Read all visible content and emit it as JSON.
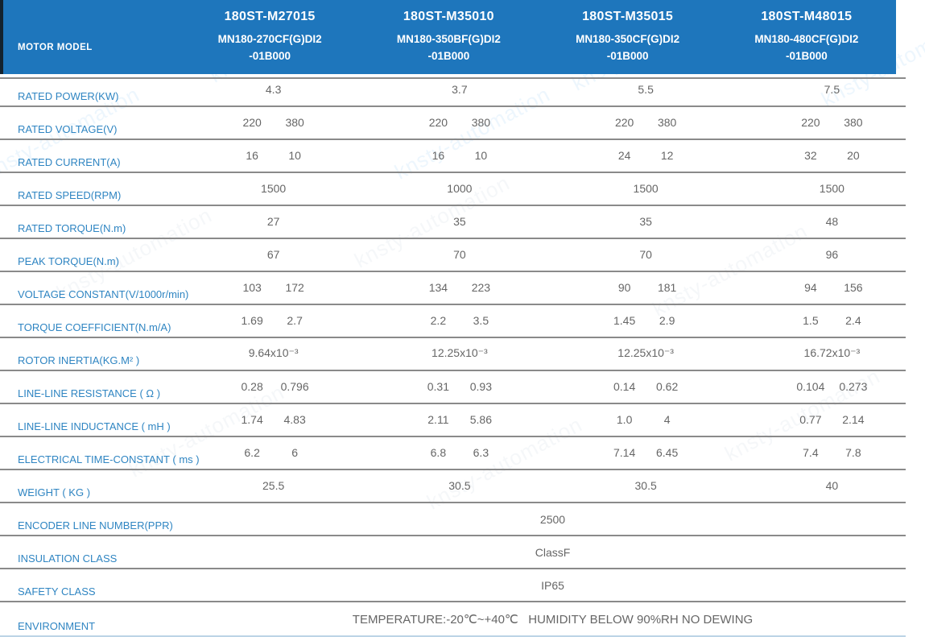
{
  "watermark": {
    "text": "knsty-automation"
  },
  "header": {
    "row_label": "MOTOR MODEL",
    "columns": [
      {
        "model": "180ST-M27015",
        "part": "MN180-270CF(G)DI2\n-01B000"
      },
      {
        "model": "180ST-M35010",
        "part": "MN180-350BF(G)DI2\n-01B000"
      },
      {
        "model": "180ST-M35015",
        "part": "MN180-350CF(G)DI2\n-01B000"
      },
      {
        "model": "180ST-M48015",
        "part": "MN180-480CF(G)DI2\n-01B000"
      }
    ]
  },
  "specs": [
    {
      "label": "RATED POWER(KW)",
      "values": [
        "4.3",
        "3.7",
        "5.5",
        "7.5"
      ]
    },
    {
      "label": "RATED VOLTAGE(V)",
      "values": [
        [
          "220",
          "380"
        ],
        [
          "220",
          "380"
        ],
        [
          "220",
          "380"
        ],
        [
          "220",
          "380"
        ]
      ]
    },
    {
      "label": "RATED CURRENT(A)",
      "values": [
        [
          "16",
          "10"
        ],
        [
          "16",
          "10"
        ],
        [
          "24",
          "12"
        ],
        [
          "32",
          "20"
        ]
      ]
    },
    {
      "label": "RATED SPEED(RPM)",
      "values": [
        "1500",
        "1000",
        "1500",
        "1500"
      ]
    },
    {
      "label": "RATED TORQUE(N.m)",
      "values": [
        "27",
        "35",
        "35",
        "48"
      ]
    },
    {
      "label": "PEAK TORQUE(N.m)",
      "values": [
        "67",
        "70",
        "70",
        "96"
      ]
    },
    {
      "label": "VOLTAGE CONSTANT(V/1000r/min)",
      "values": [
        [
          "103",
          "172"
        ],
        [
          "134",
          "223"
        ],
        [
          "90",
          "181"
        ],
        [
          "94",
          "156"
        ]
      ]
    },
    {
      "label": "TORQUE COEFFICIENT(N.m/A)",
      "values": [
        [
          "1.69",
          "2.7"
        ],
        [
          "2.2",
          "3.5"
        ],
        [
          "1.45",
          "2.9"
        ],
        [
          "1.5",
          "2.4"
        ]
      ]
    },
    {
      "label": "ROTOR INERTIA(KG.M² )",
      "values": [
        "9.64x10⁻³",
        "12.25x10⁻³",
        "12.25x10⁻³",
        "16.72x10⁻³"
      ]
    },
    {
      "label": "LINE-LINE RESISTANCE ( Ω )",
      "values": [
        [
          "0.28",
          "0.796"
        ],
        [
          "0.31",
          "0.93"
        ],
        [
          "0.14",
          "0.62"
        ],
        [
          "0.104",
          "0.273"
        ]
      ]
    },
    {
      "label": "LINE-LINE INDUCTANCE ( mH )",
      "values": [
        [
          "1.74",
          "4.83"
        ],
        [
          "2.11",
          "5.86"
        ],
        [
          "1.0",
          "4"
        ],
        [
          "0.77",
          "2.14"
        ]
      ]
    },
    {
      "label": "ELECTRICAL TIME-CONSTANT ( ms )",
      "values": [
        [
          "6.2",
          "6"
        ],
        [
          "6.8",
          "6.3"
        ],
        [
          "7.14",
          "6.45"
        ],
        [
          "7.4",
          "7.8"
        ]
      ]
    },
    {
      "label": "WEIGHT ( KG )",
      "values": [
        "25.5",
        "30.5",
        "30.5",
        "40"
      ]
    }
  ],
  "merged": [
    {
      "label": "ENCODER LINE NUMBER(PPR)",
      "value": "2500"
    },
    {
      "label": "INSULATION CLASS",
      "value": "ClassF"
    },
    {
      "label": "SAFETY CLASS",
      "value": "IP65"
    },
    {
      "label": "ENVIRONMENT",
      "value": "TEMPERATURE:-20℃~+40℃   HUMIDITY BELOW 90%RH NO DEWING"
    }
  ],
  "colors": {
    "header_blue": "#1e76bc",
    "label_blue": "#2f85c2",
    "value_gray": "#666666",
    "divider_gray": "#8a8a8a",
    "bottom_line_blue": "#bcd4e6"
  }
}
